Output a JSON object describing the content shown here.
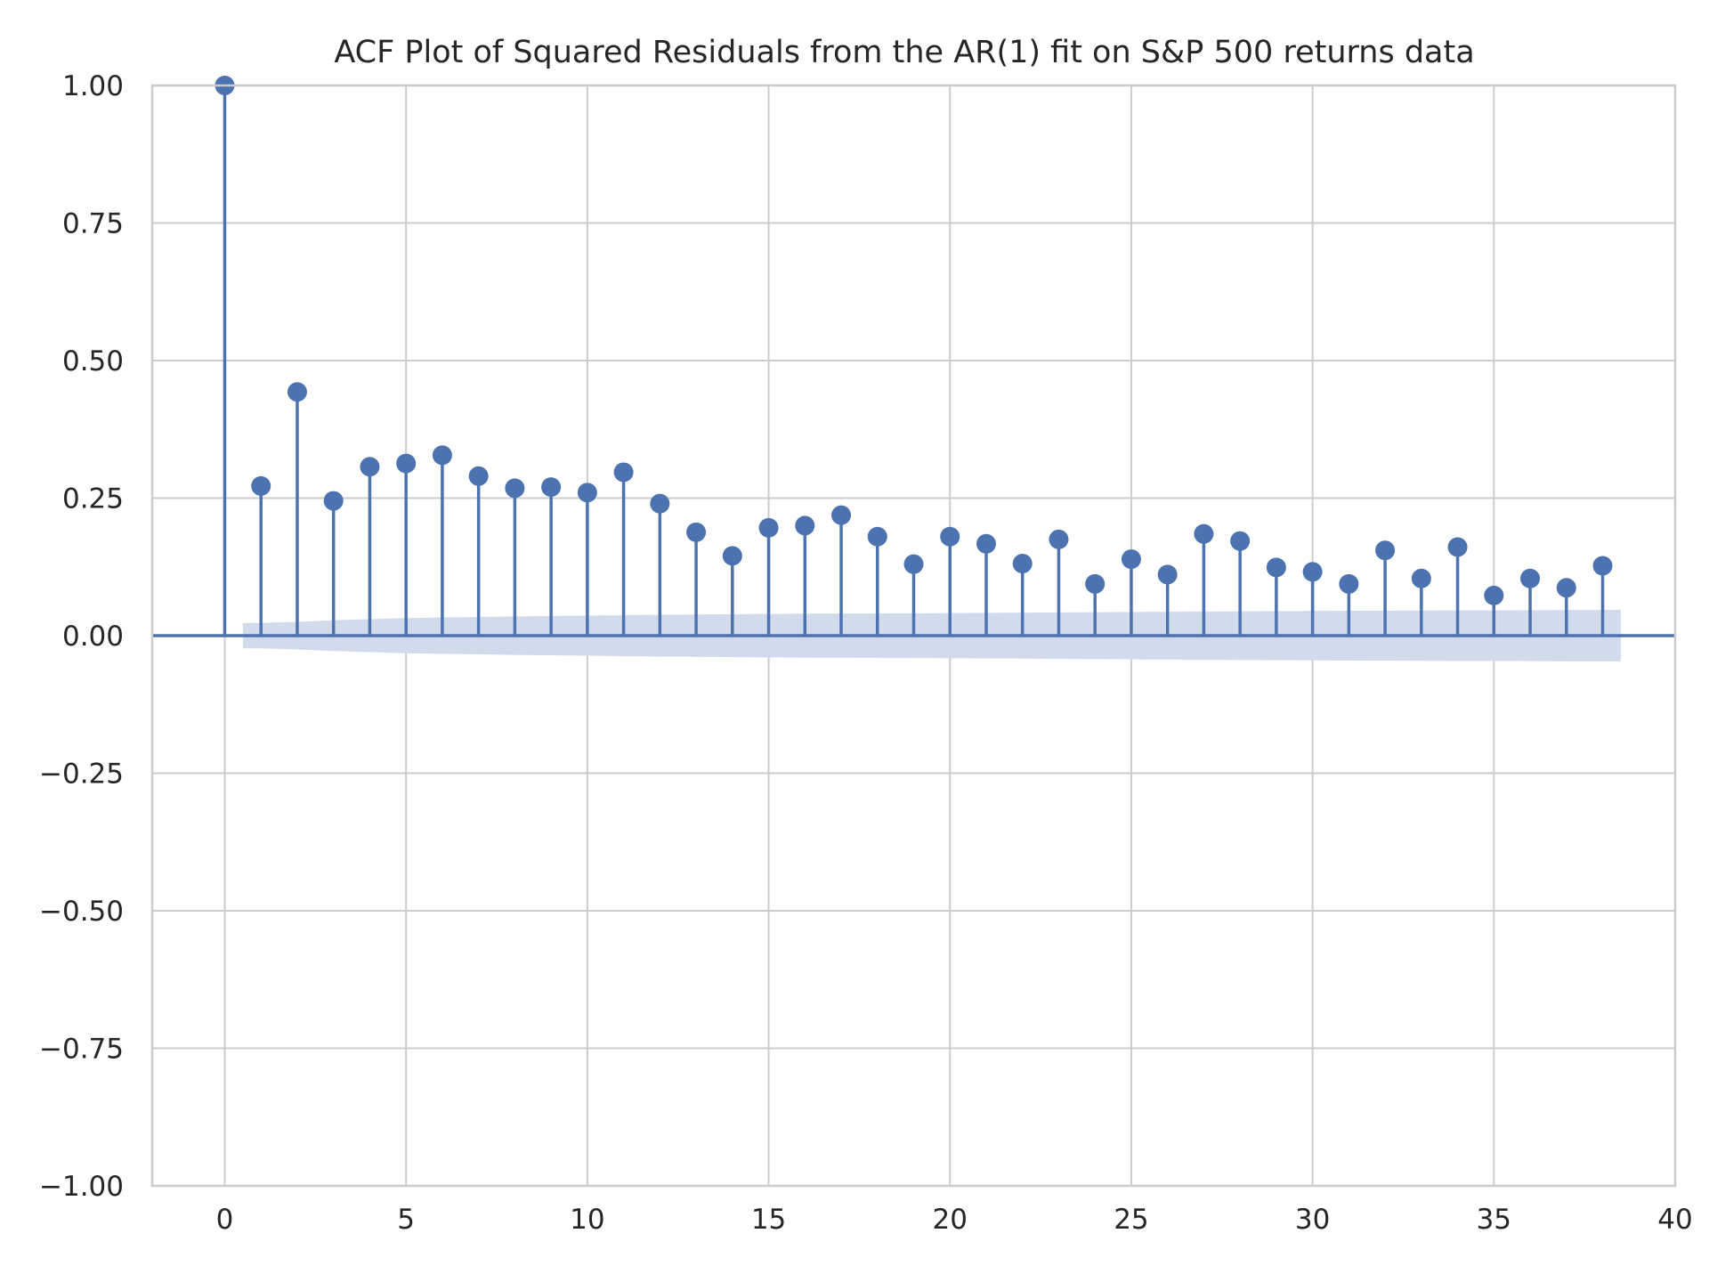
{
  "chart_data": {
    "type": "stem",
    "title": "ACF Plot of Squared Residuals from the AR(1) fit on S&P 500 returns data",
    "xlabel": "",
    "ylabel": "",
    "xlim": [
      -2,
      40
    ],
    "ylim": [
      -1.0,
      1.0
    ],
    "x_ticks": [
      0,
      5,
      10,
      15,
      20,
      25,
      30,
      35,
      40
    ],
    "x_tick_labels": [
      "0",
      "5",
      "10",
      "15",
      "20",
      "25",
      "30",
      "35",
      "40"
    ],
    "y_ticks": [
      1.0,
      0.75,
      0.5,
      0.25,
      0.0,
      -0.25,
      -0.5,
      -0.75,
      -1.0
    ],
    "y_tick_labels": [
      "1.00",
      "0.75",
      "0.50",
      "0.25",
      "0.00",
      "−0.25",
      "−0.50",
      "−0.75",
      "−1.00"
    ],
    "grid": true,
    "lags": [
      0,
      1,
      2,
      3,
      4,
      5,
      6,
      7,
      8,
      9,
      10,
      11,
      12,
      13,
      14,
      15,
      16,
      17,
      18,
      19,
      20,
      21,
      22,
      23,
      24,
      25,
      26,
      27,
      28,
      29,
      30,
      31,
      32,
      33,
      34,
      35,
      36,
      37,
      38
    ],
    "values": [
      1.0,
      0.272,
      0.443,
      0.245,
      0.307,
      0.313,
      0.328,
      0.29,
      0.268,
      0.27,
      0.26,
      0.297,
      0.24,
      0.188,
      0.145,
      0.196,
      0.2,
      0.219,
      0.18,
      0.13,
      0.18,
      0.167,
      0.131,
      0.175,
      0.094,
      0.139,
      0.111,
      0.185,
      0.172,
      0.124,
      0.116,
      0.094,
      0.155,
      0.104,
      0.161,
      0.073,
      0.104,
      0.087,
      0.127
    ],
    "confidence_band": {
      "lags": [
        0.5,
        1,
        2,
        3,
        5,
        8,
        12,
        16,
        20,
        25,
        30,
        35,
        38.5
      ],
      "upper": [
        0.023,
        0.023,
        0.025,
        0.028,
        0.032,
        0.035,
        0.038,
        0.04,
        0.041,
        0.043,
        0.045,
        0.046,
        0.047
      ],
      "lower": [
        -0.023,
        -0.023,
        -0.025,
        -0.028,
        -0.032,
        -0.035,
        -0.038,
        -0.04,
        -0.041,
        -0.043,
        -0.045,
        -0.046,
        -0.047
      ]
    },
    "colors": {
      "series": "#4c72b0",
      "band": "#d2dbeb",
      "grid": "#cccccc",
      "spine": "#cccccc",
      "text": "#262626"
    }
  }
}
